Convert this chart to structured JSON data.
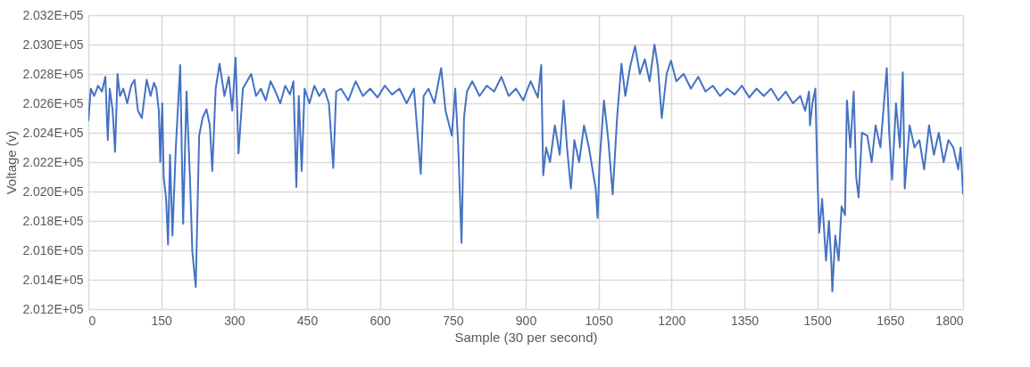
{
  "chart_data": {
    "type": "line",
    "xlabel": "Sample (30 per second)",
    "ylabel": "Voltage (v)",
    "x": [
      0,
      5,
      12,
      20,
      28,
      35,
      40,
      44,
      50,
      55,
      60,
      65,
      72,
      80,
      88,
      95,
      102,
      110,
      120,
      128,
      135,
      140,
      145,
      148,
      152,
      155,
      160,
      164,
      168,
      173,
      180,
      189,
      195,
      202,
      209,
      214,
      221,
      228,
      235,
      243,
      250,
      255,
      262,
      270,
      280,
      289,
      296,
      303,
      309,
      318,
      335,
      345,
      355,
      365,
      375,
      385,
      395,
      405,
      415,
      422,
      428,
      433,
      439,
      445,
      455,
      465,
      475,
      485,
      495,
      504,
      510,
      520,
      535,
      550,
      565,
      580,
      595,
      610,
      625,
      640,
      655,
      670,
      684,
      690,
      700,
      712,
      726,
      735,
      748,
      755,
      761,
      768,
      773,
      779,
      790,
      805,
      820,
      835,
      850,
      865,
      880,
      895,
      910,
      925,
      932,
      936,
      942,
      950,
      960,
      970,
      978,
      985,
      993,
      1000,
      1010,
      1020,
      1030,
      1044,
      1048,
      1052,
      1061,
      1070,
      1079,
      1088,
      1097,
      1105,
      1115,
      1125,
      1135,
      1145,
      1155,
      1165,
      1172,
      1180,
      1190,
      1199,
      1210,
      1225,
      1240,
      1255,
      1270,
      1285,
      1300,
      1315,
      1330,
      1345,
      1360,
      1375,
      1390,
      1405,
      1420,
      1435,
      1450,
      1465,
      1475,
      1483,
      1485,
      1490,
      1496,
      1500,
      1504,
      1510,
      1518,
      1524,
      1529,
      1531,
      1537,
      1544,
      1550,
      1557,
      1561,
      1568,
      1575,
      1580,
      1585,
      1592,
      1603,
      1612,
      1620,
      1630,
      1643,
      1648,
      1654,
      1662,
      1670,
      1676,
      1680,
      1690,
      1700,
      1710,
      1720,
      1730,
      1740,
      1750,
      1760,
      1770,
      1780,
      1790,
      1795,
      1800
    ],
    "series": [
      {
        "color": "#4472c4",
        "values": [
          202480,
          202700,
          202650,
          202720,
          202680,
          202780,
          202350,
          202700,
          202550,
          202270,
          202800,
          202650,
          202700,
          202600,
          202720,
          202760,
          202550,
          202500,
          202760,
          202650,
          202740,
          202700,
          202550,
          202200,
          202600,
          202100,
          201950,
          201640,
          202250,
          201700,
          202300,
          202860,
          201780,
          202680,
          202100,
          201590,
          201350,
          202380,
          202500,
          202560,
          202450,
          202140,
          202700,
          202870,
          202650,
          202780,
          202550,
          202910,
          202260,
          202700,
          202800,
          202650,
          202700,
          202620,
          202750,
          202680,
          202600,
          202720,
          202660,
          202750,
          202030,
          202650,
          202140,
          202700,
          202600,
          202720,
          202650,
          202700,
          202600,
          202160,
          202680,
          202700,
          202620,
          202750,
          202650,
          202700,
          202640,
          202720,
          202660,
          202700,
          202600,
          202700,
          202120,
          202650,
          202700,
          202600,
          202840,
          202550,
          202380,
          202700,
          202320,
          201650,
          202500,
          202680,
          202750,
          202650,
          202720,
          202680,
          202780,
          202650,
          202700,
          202620,
          202750,
          202640,
          202860,
          202110,
          202300,
          202200,
          202450,
          202250,
          202620,
          202300,
          202020,
          202350,
          202200,
          202450,
          202300,
          202020,
          201820,
          202200,
          202620,
          202350,
          201980,
          202500,
          202870,
          202650,
          202850,
          202990,
          202800,
          202900,
          202750,
          203000,
          202850,
          202500,
          202800,
          202890,
          202750,
          202800,
          202700,
          202780,
          202680,
          202720,
          202650,
          202700,
          202660,
          202720,
          202640,
          202700,
          202650,
          202700,
          202620,
          202680,
          202600,
          202650,
          202550,
          202680,
          202450,
          202600,
          202700,
          202140,
          201720,
          201950,
          201530,
          201800,
          201510,
          201320,
          201700,
          201530,
          201900,
          201840,
          202620,
          202300,
          202680,
          202100,
          201960,
          202400,
          202380,
          202200,
          202450,
          202300,
          202840,
          202400,
          202080,
          202600,
          202300,
          202810,
          202020,
          202450,
          202300,
          202350,
          202150,
          202450,
          202250,
          202400,
          202200,
          202350,
          202300,
          202150,
          202300,
          201980
        ]
      }
    ],
    "xlim": [
      0,
      1800
    ],
    "xticks": [
      0,
      150,
      300,
      450,
      600,
      750,
      900,
      1050,
      1200,
      1350,
      1500,
      1650,
      1800
    ],
    "ylim": [
      201200,
      203200
    ],
    "yticks": [
      {
        "value": 201200,
        "label": "2.012E+05"
      },
      {
        "value": 201400,
        "label": "2.014E+05"
      },
      {
        "value": 201600,
        "label": "2.016E+05"
      },
      {
        "value": 201800,
        "label": "2.018E+05"
      },
      {
        "value": 202000,
        "label": "2.020E+05"
      },
      {
        "value": 202200,
        "label": "2.022E+05"
      },
      {
        "value": 202400,
        "label": "2.024E+05"
      },
      {
        "value": 202600,
        "label": "2.026E+05"
      },
      {
        "value": 202800,
        "label": "2.028E+05"
      },
      {
        "value": 203000,
        "label": "2.030E+05"
      },
      {
        "value": 203200,
        "label": "2.032E+05"
      }
    ],
    "grid": true,
    "marker": "none",
    "line_style": "solid"
  }
}
